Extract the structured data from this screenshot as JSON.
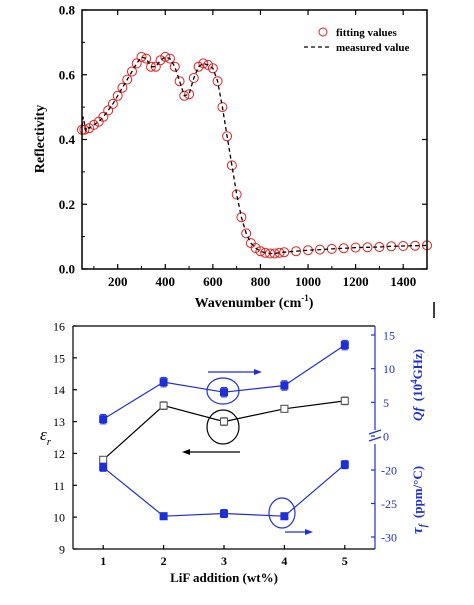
{
  "colors": {
    "axis": "#000000",
    "fit": "#e02020",
    "measured": "#000000",
    "blue": "#1f2fd6",
    "gray": "#555555"
  },
  "chart_data": [
    {
      "type": "line",
      "xlabel": "Wavenumber (cm",
      "xlabel_sup": "-1",
      "xlabel_close": ")",
      "ylabel": "Reflectivity",
      "xlim": [
        50,
        1500
      ],
      "ylim": [
        0.0,
        0.8
      ],
      "x_ticks": [
        200,
        400,
        600,
        800,
        1000,
        1200,
        1400
      ],
      "x_tick_labels": [
        "200",
        "400",
        "600",
        "800",
        "1000",
        "1200",
        "1400"
      ],
      "y_ticks": [
        0.0,
        0.2,
        0.4,
        0.6,
        0.8
      ],
      "y_tick_labels": [
        "0.0",
        "0.2",
        "0.4",
        "0.6",
        "0.8"
      ],
      "legend_position": "top-right",
      "series": [
        {
          "name": "fitting values",
          "style": "circles",
          "x": [
            50,
            60,
            80,
            100,
            120,
            140,
            160,
            180,
            200,
            220,
            240,
            260,
            280,
            300,
            320,
            340,
            360,
            380,
            400,
            420,
            440,
            460,
            480,
            500,
            520,
            540,
            560,
            580,
            600,
            620,
            640,
            660,
            680,
            700,
            720,
            740,
            760,
            780,
            800,
            820,
            840,
            860,
            880,
            900,
            950,
            1000,
            1050,
            1100,
            1150,
            1200,
            1250,
            1300,
            1350,
            1400,
            1450,
            1500
          ],
          "y": [
            0.43,
            0.43,
            0.435,
            0.445,
            0.455,
            0.47,
            0.49,
            0.51,
            0.535,
            0.56,
            0.585,
            0.61,
            0.635,
            0.655,
            0.65,
            0.625,
            0.625,
            0.645,
            0.655,
            0.65,
            0.625,
            0.58,
            0.535,
            0.54,
            0.59,
            0.625,
            0.635,
            0.63,
            0.62,
            0.58,
            0.5,
            0.41,
            0.32,
            0.23,
            0.16,
            0.11,
            0.08,
            0.065,
            0.055,
            0.05,
            0.048,
            0.048,
            0.05,
            0.052,
            0.055,
            0.058,
            0.06,
            0.062,
            0.064,
            0.066,
            0.067,
            0.068,
            0.07,
            0.071,
            0.072,
            0.073
          ]
        },
        {
          "name": "measured value",
          "style": "dashed",
          "x": [
            50,
            55,
            60,
            65,
            70,
            80,
            100,
            120,
            140,
            160,
            180,
            200,
            220,
            240,
            260,
            280,
            300,
            320,
            340,
            360,
            380,
            400,
            420,
            440,
            460,
            480,
            500,
            520,
            540,
            560,
            580,
            600,
            620,
            640,
            660,
            680,
            700,
            720,
            740,
            760,
            780,
            800,
            820,
            840,
            860,
            880,
            900,
            950,
            1000,
            1050,
            1100,
            1150,
            1200,
            1250,
            1300,
            1350,
            1400,
            1450,
            1500
          ],
          "y": [
            0.44,
            0.47,
            0.45,
            0.43,
            0.44,
            0.435,
            0.445,
            0.455,
            0.47,
            0.49,
            0.51,
            0.535,
            0.56,
            0.585,
            0.61,
            0.635,
            0.655,
            0.65,
            0.625,
            0.625,
            0.645,
            0.655,
            0.65,
            0.625,
            0.58,
            0.535,
            0.54,
            0.59,
            0.625,
            0.635,
            0.63,
            0.62,
            0.58,
            0.5,
            0.41,
            0.32,
            0.23,
            0.16,
            0.11,
            0.08,
            0.065,
            0.055,
            0.05,
            0.048,
            0.048,
            0.05,
            0.052,
            0.055,
            0.058,
            0.06,
            0.062,
            0.064,
            0.066,
            0.067,
            0.068,
            0.07,
            0.071,
            0.072,
            0.073
          ]
        }
      ]
    },
    {
      "type": "line",
      "xlabel": "LiF addition (wt%)",
      "xlim": [
        0.5,
        5.5
      ],
      "x_ticks": [
        1,
        2,
        3,
        4,
        5
      ],
      "x_tick_labels": [
        "1",
        "2",
        "3",
        "4",
        "5"
      ],
      "left_axis": {
        "label": "ε",
        "label_sub": "r",
        "ylim": [
          9,
          16
        ],
        "ticks": [
          9,
          10,
          11,
          12,
          13,
          14,
          15,
          16
        ],
        "tick_labels": [
          "9",
          "10",
          "11",
          "12",
          "13",
          "14",
          "15",
          "16"
        ]
      },
      "right_axis": {
        "label_qf": "Qf",
        "label_qf_units_open": "(10",
        "label_qf_units_sup": "4",
        "label_qf_units_close": "GHz)",
        "label_tf": "τ",
        "label_tf_sub": "f",
        "label_tf_units": "(ppm/°C)",
        "upper_ticks": [
          0,
          5,
          10,
          15
        ],
        "upper_tick_labels": [
          "0",
          "5",
          "10",
          "15"
        ],
        "lower_ticks": [
          -30,
          -25,
          -20
        ],
        "lower_tick_labels": [
          "-30",
          "-25",
          "-20"
        ],
        "upper_range": [
          0,
          16
        ],
        "lower_range": [
          -31,
          -15
        ]
      },
      "series": [
        {
          "name": "εr",
          "axis": "left",
          "marker": "open-square",
          "x": [
            1,
            2,
            3,
            4,
            5
          ],
          "y": [
            11.8,
            13.5,
            13.0,
            13.4,
            13.65
          ],
          "err": [
            0.1,
            0.12,
            0.12,
            0.1,
            0.12
          ]
        },
        {
          "name": "Qf",
          "axis": "right-upper",
          "marker": "filled-square",
          "x": [
            1,
            2,
            3,
            4,
            5
          ],
          "y": [
            2.5,
            8.0,
            6.5,
            7.5,
            13.5
          ],
          "err": [
            0.7,
            0.7,
            0.7,
            0.7,
            0.7
          ]
        },
        {
          "name": "τf",
          "axis": "right-lower",
          "marker": "filled-square",
          "x": [
            1,
            2,
            3,
            4,
            5
          ],
          "y": [
            -19.6,
            -26.9,
            -26.5,
            -26.9,
            -19.2
          ],
          "err": [
            0.6,
            0.5,
            0.6,
            0.5,
            0.6
          ]
        }
      ]
    }
  ]
}
